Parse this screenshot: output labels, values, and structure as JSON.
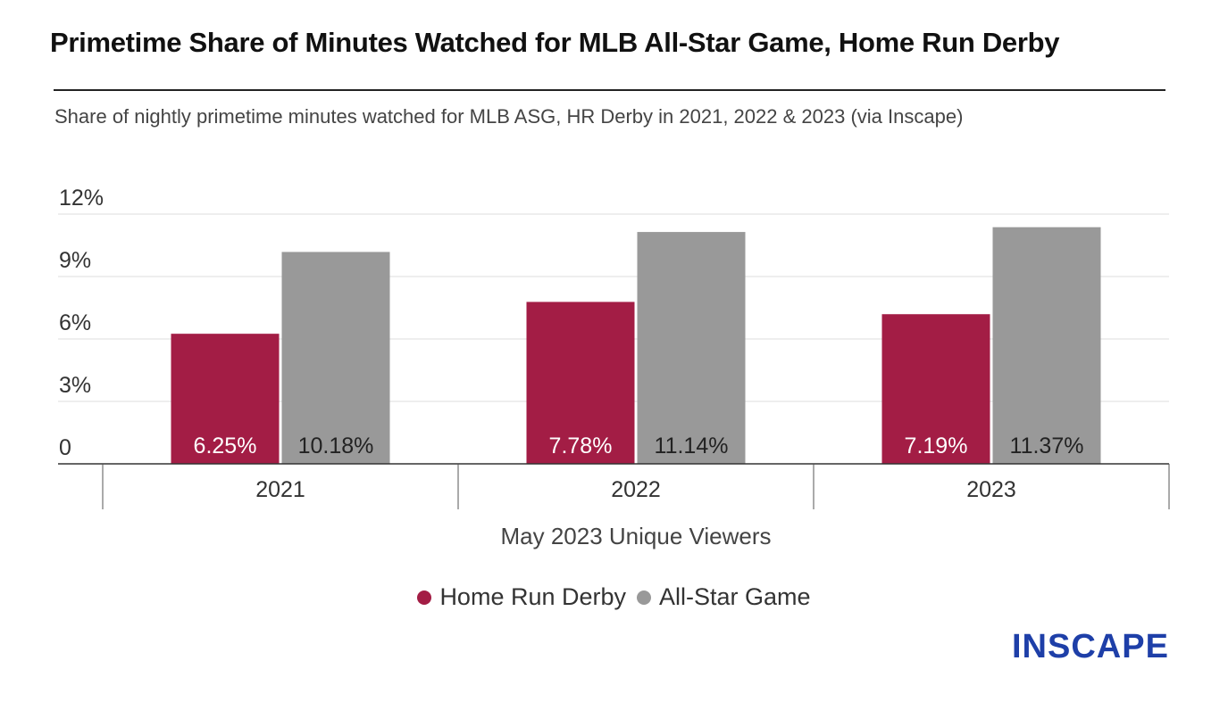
{
  "header": {
    "title": "Primetime Share of Minutes Watched for MLB All-Star Game, Home Run Derby",
    "subtitle": "Share of nightly primetime minutes watched for MLB ASG, HR Derby in 2021, 2022 & 2023 (via Inscape)"
  },
  "logo": {
    "text": "INSCAPE",
    "color": "#1e3fa8"
  },
  "chart_data": {
    "type": "bar",
    "categories": [
      "2021",
      "2022",
      "2023"
    ],
    "series": [
      {
        "name": "Home Run Derby",
        "color": "#a31d45",
        "label_color": "#ffffff",
        "values": [
          6.25,
          7.78,
          7.19
        ],
        "labels": [
          "6.25%",
          "7.78%",
          "7.19%"
        ]
      },
      {
        "name": "All-Star Game",
        "color": "#999999",
        "label_color": "#222222",
        "values": [
          10.18,
          11.14,
          11.37
        ],
        "labels": [
          "10.18%",
          "11.14%",
          "11.37%"
        ]
      }
    ],
    "ylim": [
      0,
      12
    ],
    "yticks": [
      0,
      3,
      6,
      9,
      12
    ],
    "ytick_labels": [
      "0",
      "3%",
      "6%",
      "9%",
      "12%"
    ],
    "xlabel": "May 2023 Unique Viewers",
    "ylabel": "",
    "grid": true,
    "legend_position": "bottom-center"
  }
}
